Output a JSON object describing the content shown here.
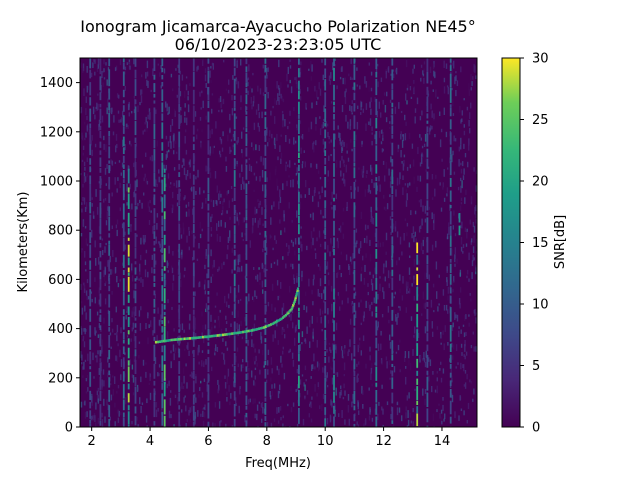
{
  "chart_data": {
    "type": "heatmap",
    "title": "Ionogram Jicamarca-Ayacucho Polarization NE45°",
    "subtitle": "06/10/2023-23:23:05 UTC",
    "xlabel": "Freq(MHz)",
    "ylabel": "Kilometers(Km)",
    "colorbar_label": "SNR[dB]",
    "colormap": "viridis",
    "xlim": [
      1.6,
      15.2
    ],
    "ylim": [
      0,
      1500
    ],
    "clim": [
      0,
      30
    ],
    "x_ticks": [
      2,
      4,
      6,
      8,
      10,
      12,
      14
    ],
    "y_ticks": [
      0,
      200,
      400,
      600,
      800,
      1000,
      1200,
      1400
    ],
    "c_ticks": [
      0,
      5,
      10,
      15,
      20,
      25,
      30
    ],
    "background_snr": 3,
    "vertical_interference": [
      {
        "freq": 1.95,
        "snr": 9,
        "y_range": [
          0,
          1500
        ]
      },
      {
        "freq": 2.3,
        "snr": 7,
        "y_range": [
          0,
          1500
        ]
      },
      {
        "freq": 2.6,
        "snr": 10,
        "y_range": [
          0,
          1500
        ]
      },
      {
        "freq": 3.1,
        "snr": 12,
        "y_range": [
          0,
          1500
        ]
      },
      {
        "freq": 3.27,
        "snr": 26,
        "y_range": [
          0,
          1050
        ]
      },
      {
        "freq": 3.5,
        "snr": 9,
        "y_range": [
          0,
          1500
        ]
      },
      {
        "freq": 4.15,
        "snr": 10,
        "y_range": [
          0,
          1500
        ]
      },
      {
        "freq": 4.42,
        "snr": 14,
        "y_range": [
          0,
          1500
        ]
      },
      {
        "freq": 4.5,
        "snr": 22,
        "y_range": [
          0,
          1050
        ]
      },
      {
        "freq": 5.0,
        "snr": 8,
        "y_range": [
          0,
          1500
        ]
      },
      {
        "freq": 5.5,
        "snr": 7,
        "y_range": [
          0,
          1500
        ]
      },
      {
        "freq": 6.0,
        "snr": 9,
        "y_range": [
          0,
          1500
        ]
      },
      {
        "freq": 6.9,
        "snr": 12,
        "y_range": [
          0,
          1500
        ]
      },
      {
        "freq": 7.3,
        "snr": 10,
        "y_range": [
          0,
          1500
        ]
      },
      {
        "freq": 7.95,
        "snr": 11,
        "y_range": [
          0,
          1500
        ]
      },
      {
        "freq": 9.1,
        "snr": 18,
        "y_range": [
          0,
          1500
        ]
      },
      {
        "freq": 10.0,
        "snr": 12,
        "y_range": [
          0,
          1500
        ]
      },
      {
        "freq": 10.3,
        "snr": 14,
        "y_range": [
          0,
          1500
        ]
      },
      {
        "freq": 11.0,
        "snr": 12,
        "y_range": [
          0,
          1500
        ]
      },
      {
        "freq": 11.75,
        "snr": 15,
        "y_range": [
          0,
          1500
        ]
      },
      {
        "freq": 12.3,
        "snr": 11,
        "y_range": [
          0,
          1500
        ]
      },
      {
        "freq": 13.15,
        "snr": 28,
        "y_range": [
          0,
          750
        ]
      },
      {
        "freq": 13.5,
        "snr": 10,
        "y_range": [
          0,
          1500
        ]
      },
      {
        "freq": 14.3,
        "snr": 12,
        "y_range": [
          0,
          1500
        ]
      },
      {
        "freq": 14.6,
        "snr": 24,
        "y_range": [
          780,
          870
        ]
      }
    ],
    "trace": {
      "name": "",
      "x": [
        4.2,
        4.8,
        5.5,
        6.0,
        6.5,
        7.0,
        7.5,
        7.9,
        8.2,
        8.5,
        8.7,
        8.85,
        8.95,
        9.02,
        9.08
      ],
      "y": [
        345,
        355,
        362,
        368,
        375,
        383,
        393,
        405,
        420,
        440,
        460,
        480,
        510,
        540,
        570
      ],
      "snr": 27
    }
  }
}
